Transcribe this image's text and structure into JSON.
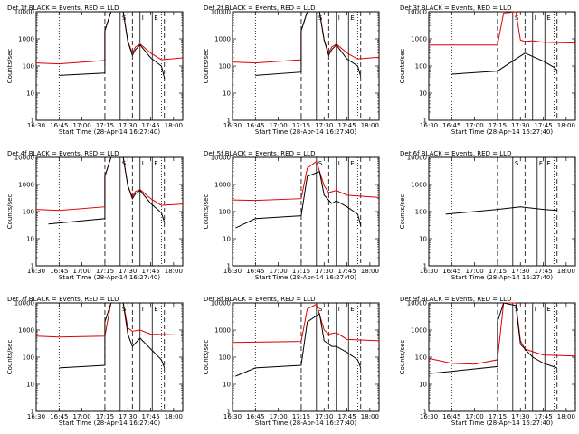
{
  "time_ticks": [
    "16:30",
    "16:45",
    "17:00",
    "17:15",
    "17:30",
    "17:45",
    "18:00"
  ],
  "xlabel": "Start Time (28-Apr-14 16:27:40)",
  "ylabel": "Counts/sec",
  "y_ticks": [
    "1",
    "10",
    "100",
    "1000",
    "10000"
  ],
  "colors": {
    "events": "#000000",
    "lld": "#e00000"
  },
  "chart_data": [
    {
      "title": "Det 1f BLACK = Events, RED = LLD",
      "type": "line",
      "yscale": "log",
      "ylim": [
        1,
        10000
      ],
      "xlim": [
        "16:30",
        "18:06"
      ],
      "markers": [
        {
          "label": "S",
          "t": "17:25"
        },
        {
          "label": "I",
          "t": "17:38"
        },
        {
          "label": "E",
          "t": "17:46"
        }
      ],
      "series": [
        {
          "name": "BLACK = Events",
          "points": [
            [
              "16:45",
              45
            ],
            [
              "17:15",
              55
            ],
            [
              "17:15",
              2000
            ],
            [
              "17:19",
              10000
            ],
            [
              "17:27",
              10000
            ],
            [
              "17:30",
              800
            ],
            [
              "17:33",
              250
            ],
            [
              "17:35",
              400
            ],
            [
              "17:38",
              600
            ],
            [
              "17:45",
              200
            ],
            [
              "17:52",
              100
            ],
            [
              "17:54",
              35
            ]
          ]
        },
        {
          "name": "RED = LLD",
          "points": [
            [
              "16:30",
              130
            ],
            [
              "16:45",
              120
            ],
            [
              "17:15",
              160
            ],
            [
              "17:15",
              2000
            ],
            [
              "17:19",
              10000
            ],
            [
              "17:27",
              10000
            ],
            [
              "17:30",
              800
            ],
            [
              "17:33",
              300
            ],
            [
              "17:35",
              500
            ],
            [
              "17:38",
              650
            ],
            [
              "17:45",
              300
            ],
            [
              "17:52",
              170
            ],
            [
              "18:06",
              200
            ]
          ]
        }
      ]
    },
    {
      "title": "Det 2f BLACK = Events, RED = LLD",
      "type": "line",
      "yscale": "log",
      "ylim": [
        1,
        10000
      ],
      "xlim": [
        "16:30",
        "18:06"
      ],
      "markers": [
        {
          "label": "S",
          "t": "17:25"
        },
        {
          "label": "I",
          "t": "17:38"
        },
        {
          "label": "E",
          "t": "17:46"
        }
      ],
      "series": [
        {
          "name": "BLACK = Events",
          "points": [
            [
              "16:45",
              45
            ],
            [
              "17:15",
              60
            ],
            [
              "17:15",
              2000
            ],
            [
              "17:19",
              10000
            ],
            [
              "17:27",
              10000
            ],
            [
              "17:30",
              900
            ],
            [
              "17:33",
              250
            ],
            [
              "17:35",
              400
            ],
            [
              "17:38",
              600
            ],
            [
              "17:45",
              180
            ],
            [
              "17:52",
              100
            ],
            [
              "17:54",
              40
            ]
          ]
        },
        {
          "name": "RED = LLD",
          "points": [
            [
              "16:30",
              140
            ],
            [
              "16:45",
              130
            ],
            [
              "17:15",
              170
            ],
            [
              "17:15",
              2000
            ],
            [
              "17:19",
              10000
            ],
            [
              "17:27",
              10000
            ],
            [
              "17:30",
              900
            ],
            [
              "17:33",
              300
            ],
            [
              "17:35",
              500
            ],
            [
              "17:38",
              650
            ],
            [
              "17:45",
              300
            ],
            [
              "17:52",
              180
            ],
            [
              "18:06",
              210
            ]
          ]
        }
      ]
    },
    {
      "title": "Det 3f BLACK = Events, RED = LLD",
      "type": "line",
      "yscale": "log",
      "ylim": [
        1,
        10000
      ],
      "xlim": [
        "16:30",
        "18:06"
      ],
      "markers": [
        {
          "label": "S",
          "t": "17:25"
        },
        {
          "label": "I",
          "t": "17:38"
        },
        {
          "label": "E",
          "t": "17:46"
        }
      ],
      "series": [
        {
          "name": "BLACK = Events",
          "points": [
            [
              "16:45",
              50
            ],
            [
              "17:15",
              65
            ],
            [
              "17:33",
              300
            ],
            [
              "17:45",
              150
            ],
            [
              "17:52",
              90
            ],
            [
              "17:54",
              70
            ]
          ]
        },
        {
          "name": "RED = LLD",
          "points": [
            [
              "16:30",
              600
            ],
            [
              "17:15",
              600
            ],
            [
              "17:19",
              9000
            ],
            [
              "17:27",
              10000
            ],
            [
              "17:30",
              900
            ],
            [
              "17:33",
              800
            ],
            [
              "17:38",
              850
            ],
            [
              "17:45",
              750
            ],
            [
              "18:06",
              700
            ]
          ]
        }
      ]
    },
    {
      "title": "Det 4f BLACK = Events, RED = LLD",
      "type": "line",
      "yscale": "log",
      "ylim": [
        1,
        10000
      ],
      "xlim": [
        "16:30",
        "18:06"
      ],
      "markers": [
        {
          "label": "S",
          "t": "17:25"
        },
        {
          "label": "I",
          "t": "17:38"
        },
        {
          "label": "E",
          "t": "17:46"
        }
      ],
      "series": [
        {
          "name": "BLACK = Events",
          "points": [
            [
              "16:38",
              35
            ],
            [
              "17:15",
              55
            ],
            [
              "17:15",
              2000
            ],
            [
              "17:19",
              10000
            ],
            [
              "17:27",
              10000
            ],
            [
              "17:30",
              900
            ],
            [
              "17:33",
              300
            ],
            [
              "17:35",
              450
            ],
            [
              "17:38",
              600
            ],
            [
              "17:45",
              200
            ],
            [
              "17:52",
              90
            ],
            [
              "17:54",
              40
            ]
          ]
        },
        {
          "name": "RED = LLD",
          "points": [
            [
              "16:30",
              120
            ],
            [
              "16:45",
              110
            ],
            [
              "17:15",
              150
            ],
            [
              "17:15",
              2000
            ],
            [
              "17:19",
              10000
            ],
            [
              "17:27",
              10000
            ],
            [
              "17:30",
              900
            ],
            [
              "17:33",
              350
            ],
            [
              "17:35",
              550
            ],
            [
              "17:38",
              650
            ],
            [
              "17:45",
              300
            ],
            [
              "17:52",
              170
            ],
            [
              "18:06",
              190
            ]
          ]
        }
      ]
    },
    {
      "title": "Det 5f BLACK = Events, RED = LLD",
      "type": "line",
      "yscale": "log",
      "ylim": [
        1,
        10000
      ],
      "xlim": [
        "16:30",
        "18:06"
      ],
      "markers": [
        {
          "label": "S",
          "t": "17:25"
        },
        {
          "label": "I",
          "t": "17:38"
        },
        {
          "label": "E",
          "t": "17:46"
        }
      ],
      "series": [
        {
          "name": "BLACK = Events",
          "points": [
            [
              "16:32",
              25
            ],
            [
              "16:45",
              55
            ],
            [
              "17:15",
              70
            ],
            [
              "17:19",
              2000
            ],
            [
              "17:27",
              3000
            ],
            [
              "17:30",
              400
            ],
            [
              "17:35",
              200
            ],
            [
              "17:38",
              250
            ],
            [
              "17:45",
              150
            ],
            [
              "17:52",
              80
            ],
            [
              "17:54",
              30
            ]
          ]
        },
        {
          "name": "RED = LLD",
          "points": [
            [
              "16:30",
              270
            ],
            [
              "16:45",
              260
            ],
            [
              "17:15",
              300
            ],
            [
              "17:19",
              4000
            ],
            [
              "17:25",
              7000
            ],
            [
              "17:30",
              900
            ],
            [
              "17:33",
              500
            ],
            [
              "17:38",
              600
            ],
            [
              "17:45",
              400
            ],
            [
              "18:06",
              330
            ]
          ]
        }
      ]
    },
    {
      "title": "Det 6f BLACK = Events, RED = LLD",
      "type": "line",
      "yscale": "log",
      "ylim": [
        1,
        10000
      ],
      "xlim": [
        "16:30",
        "18:06"
      ],
      "markers": [
        {
          "label": "S",
          "t": "17:25"
        },
        {
          "label": "F",
          "t": "17:41"
        },
        {
          "label": "E",
          "t": "17:46"
        }
      ],
      "series": [
        {
          "name": "BLACK = Events",
          "points": [
            [
              "16:41",
              80
            ],
            [
              "17:00",
              100
            ],
            [
              "17:15",
              120
            ],
            [
              "17:30",
              150
            ],
            [
              "17:45",
              120
            ],
            [
              "17:54",
              110
            ]
          ]
        }
      ]
    },
    {
      "title": "Det 7f BLACK = Events, RED = LLD",
      "type": "line",
      "yscale": "log",
      "ylim": [
        1,
        10000
      ],
      "xlim": [
        "16:30",
        "18:06"
      ],
      "markers": [
        {
          "label": "S",
          "t": "17:25"
        },
        {
          "label": "I",
          "t": "17:38"
        },
        {
          "label": "E",
          "t": "17:46"
        }
      ],
      "series": [
        {
          "name": "BLACK = Events",
          "points": [
            [
              "16:45",
              40
            ],
            [
              "17:15",
              50
            ],
            [
              "17:15",
              2000
            ],
            [
              "17:19",
              10000
            ],
            [
              "17:27",
              10000
            ],
            [
              "17:30",
              700
            ],
            [
              "17:33",
              250
            ],
            [
              "17:38",
              500
            ],
            [
              "17:45",
              200
            ],
            [
              "17:52",
              80
            ],
            [
              "17:54",
              40
            ]
          ]
        },
        {
          "name": "RED = LLD",
          "points": [
            [
              "16:30",
              600
            ],
            [
              "16:45",
              550
            ],
            [
              "17:15",
              600
            ],
            [
              "17:19",
              10000
            ],
            [
              "17:27",
              10000
            ],
            [
              "17:30",
              1200
            ],
            [
              "17:33",
              900
            ],
            [
              "17:38",
              1000
            ],
            [
              "17:45",
              700
            ],
            [
              "18:06",
              650
            ]
          ]
        }
      ]
    },
    {
      "title": "Det 8f BLACK = Events, RED = LLD",
      "type": "line",
      "yscale": "log",
      "ylim": [
        1,
        10000
      ],
      "xlim": [
        "16:30",
        "18:06"
      ],
      "markers": [
        {
          "label": "S",
          "t": "17:25"
        },
        {
          "label": "I",
          "t": "17:38"
        },
        {
          "label": "E",
          "t": "17:46"
        }
      ],
      "series": [
        {
          "name": "BLACK = Events",
          "points": [
            [
              "16:32",
              20
            ],
            [
              "16:45",
              40
            ],
            [
              "17:15",
              50
            ],
            [
              "17:19",
              2000
            ],
            [
              "17:27",
              4000
            ],
            [
              "17:30",
              400
            ],
            [
              "17:35",
              250
            ],
            [
              "17:38",
              250
            ],
            [
              "17:45",
              150
            ],
            [
              "17:52",
              80
            ],
            [
              "17:54",
              40
            ]
          ]
        },
        {
          "name": "RED = LLD",
          "points": [
            [
              "16:30",
              350
            ],
            [
              "17:15",
              380
            ],
            [
              "17:19",
              6000
            ],
            [
              "17:25",
              9000
            ],
            [
              "17:30",
              1000
            ],
            [
              "17:33",
              700
            ],
            [
              "17:38",
              800
            ],
            [
              "17:45",
              450
            ],
            [
              "18:06",
              400
            ]
          ]
        }
      ]
    },
    {
      "title": "Det 9f BLACK = Events, RED = LLD",
      "type": "line",
      "yscale": "log",
      "ylim": [
        1,
        10000
      ],
      "xlim": [
        "16:30",
        "18:06"
      ],
      "markers": [
        {
          "label": "S",
          "t": "17:25"
        },
        {
          "label": "I",
          "t": "17:38"
        },
        {
          "label": "E",
          "t": "17:46"
        }
      ],
      "series": [
        {
          "name": "BLACK = Events",
          "points": [
            [
              "16:30",
              25
            ],
            [
              "16:45",
              30
            ],
            [
              "17:15",
              45
            ],
            [
              "17:15",
              2000
            ],
            [
              "17:19",
              10000
            ],
            [
              "17:27",
              8000
            ],
            [
              "17:30",
              300
            ],
            [
              "17:35",
              150
            ],
            [
              "17:38",
              100
            ],
            [
              "17:45",
              60
            ],
            [
              "17:54",
              40
            ]
          ]
        },
        {
          "name": "RED = LLD",
          "points": [
            [
              "16:30",
              90
            ],
            [
              "16:45",
              60
            ],
            [
              "17:00",
              55
            ],
            [
              "17:15",
              80
            ],
            [
              "17:19",
              10000
            ],
            [
              "17:27",
              10000
            ],
            [
              "17:30",
              400
            ],
            [
              "17:33",
              200
            ],
            [
              "17:38",
              160
            ],
            [
              "17:45",
              120
            ],
            [
              "18:06",
              110
            ]
          ]
        }
      ]
    }
  ]
}
